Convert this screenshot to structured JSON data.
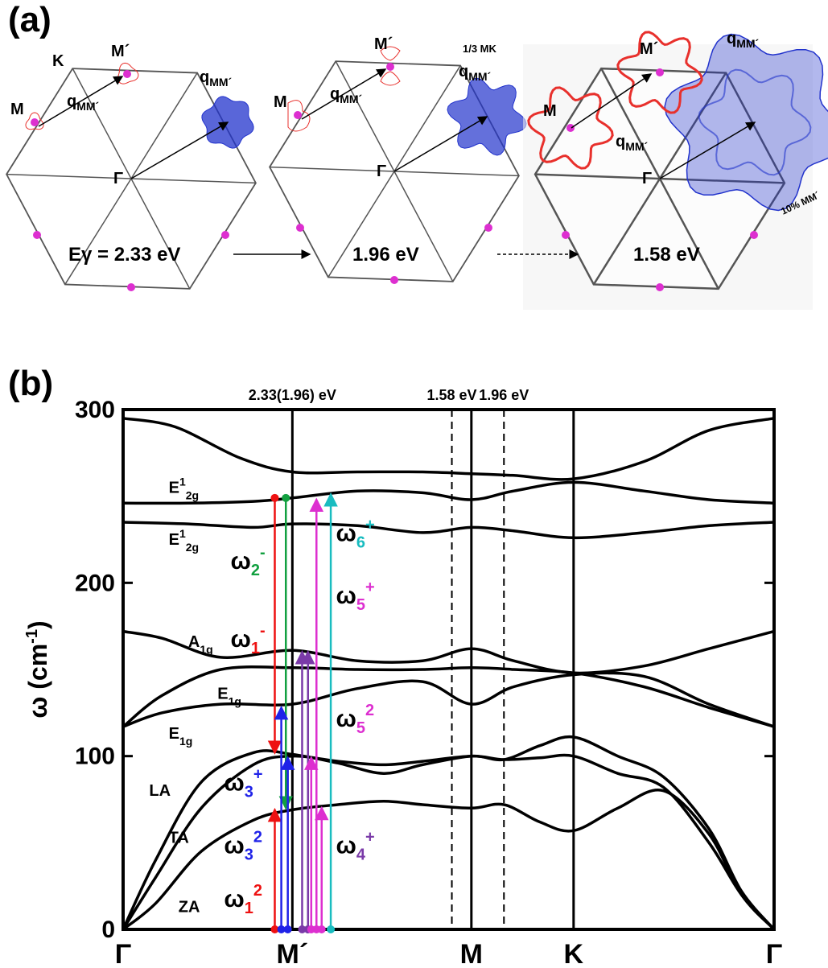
{
  "panels": {
    "a": "(a)",
    "b": "(b)"
  },
  "panel_a": {
    "energies": [
      "Eγ = 2.33 eV",
      "1.96 eV",
      "1.58 eV"
    ],
    "zones": [
      {
        "labels": {
          "M": "M",
          "Mp": "M´",
          "K": "K",
          "Gamma": "Γ",
          "q1": "q",
          "q1sub": "MM´",
          "q2": "q",
          "q2sub": "MM´"
        }
      },
      {
        "labels": {
          "M": "M",
          "Mp": "M´",
          "Gamma": "Γ",
          "q1": "q",
          "q1sub": "MM´",
          "q2": "q",
          "q2sub": "MM´",
          "frac": "1/3 MK"
        }
      },
      {
        "labels": {
          "M": "M",
          "Mp": "M´",
          "Gamma": "Γ",
          "q1": "q",
          "q1sub": "MM´",
          "q2": "q",
          "q2sub": "MM´",
          "pct": "10% MM´"
        }
      }
    ],
    "colors": {
      "contour": "#e8302c",
      "point": "#dd2fd0",
      "blue": "#2233cc",
      "zone": "#555555"
    }
  },
  "chart_data": {
    "type": "line",
    "ylabel": "ω (cm-1)",
    "ylim": [
      0,
      300
    ],
    "yticks": [
      0,
      100,
      200,
      300
    ],
    "xticks": [
      {
        "label": "Γ",
        "pos": 0.0
      },
      {
        "label": "M´",
        "pos": 0.26
      },
      {
        "label": "M",
        "pos": 0.535
      },
      {
        "label": "K",
        "pos": 0.692
      },
      {
        "label": "Γ",
        "pos": 1.0
      }
    ],
    "xlim": [
      0,
      1
    ],
    "vlines_dashed": [
      {
        "label": "1.58 eV",
        "pos": 0.505
      },
      {
        "label": "1.96 eV",
        "pos": 0.585
      }
    ],
    "top_label": "2.33(1.96) eV",
    "branches": [
      {
        "name": "ZA",
        "x": [
          0,
          0.05,
          0.12,
          0.2,
          0.26,
          0.33,
          0.4,
          0.46,
          0.535,
          0.585,
          0.64,
          0.692,
          0.76,
          0.83,
          0.9,
          0.95,
          1.0
        ],
        "y": [
          0,
          15,
          45,
          63,
          69,
          72,
          74,
          72,
          70,
          72,
          62,
          57,
          70,
          80,
          55,
          20,
          0
        ]
      },
      {
        "name": "TA",
        "x": [
          0,
          0.05,
          0.12,
          0.2,
          0.26,
          0.33,
          0.4,
          0.46,
          0.535,
          0.585,
          0.64,
          0.692,
          0.76,
          0.83,
          0.9,
          0.95,
          1.0
        ],
        "y": [
          0,
          30,
          70,
          95,
          100,
          97,
          95,
          97,
          100,
          98,
          99,
          100,
          90,
          82,
          50,
          20,
          0
        ]
      },
      {
        "name": "LA",
        "x": [
          0,
          0.05,
          0.12,
          0.2,
          0.26,
          0.33,
          0.4,
          0.46,
          0.535,
          0.585,
          0.64,
          0.692,
          0.76,
          0.83,
          0.9,
          0.95,
          1.0
        ],
        "y": [
          0,
          40,
          85,
          102,
          101,
          96,
          90,
          95,
          100,
          98,
          106,
          111,
          100,
          88,
          58,
          22,
          0
        ]
      },
      {
        "name": "E1g-a",
        "x": [
          0,
          0.06,
          0.15,
          0.26,
          0.36,
          0.46,
          0.535,
          0.6,
          0.692,
          0.8,
          0.9,
          1.0
        ],
        "y": [
          117,
          125,
          130,
          130,
          139,
          143,
          130,
          140,
          147,
          146,
          130,
          117
        ]
      },
      {
        "name": "E1g-b",
        "x": [
          0,
          0.06,
          0.15,
          0.26,
          0.36,
          0.46,
          0.535,
          0.6,
          0.692,
          0.8,
          0.9,
          1.0
        ],
        "y": [
          117,
          135,
          150,
          151,
          150,
          150,
          151,
          150,
          148,
          140,
          128,
          117
        ]
      },
      {
        "name": "A1g",
        "x": [
          0,
          0.06,
          0.15,
          0.26,
          0.36,
          0.46,
          0.535,
          0.6,
          0.692,
          0.8,
          0.9,
          1.0
        ],
        "y": [
          172,
          168,
          157,
          161,
          155,
          155,
          162,
          155,
          148,
          152,
          162,
          172
        ]
      },
      {
        "name": "E12g-a",
        "x": [
          0,
          0.1,
          0.2,
          0.26,
          0.36,
          0.46,
          0.535,
          0.6,
          0.692,
          0.8,
          0.9,
          1.0
        ],
        "y": [
          235,
          234,
          232,
          234,
          233,
          229,
          232,
          230,
          226,
          229,
          233,
          235
        ]
      },
      {
        "name": "E12g-b",
        "x": [
          0,
          0.1,
          0.2,
          0.26,
          0.36,
          0.46,
          0.535,
          0.6,
          0.692,
          0.8,
          0.9,
          1.0
        ],
        "y": [
          246,
          246,
          247,
          249,
          253,
          252,
          248,
          253,
          258,
          253,
          248,
          246
        ]
      },
      {
        "name": "E12g-c",
        "x": [
          0,
          0.08,
          0.18,
          0.26,
          0.36,
          0.46,
          0.535,
          0.6,
          0.692,
          0.8,
          0.9,
          1.0
        ],
        "y": [
          295,
          290,
          272,
          264,
          264,
          264,
          263,
          262,
          260,
          270,
          288,
          295
        ]
      }
    ],
    "branch_labels": [
      {
        "text": "E",
        "sup": "1",
        "sub": "2g",
        "x": 0.07,
        "y": 252
      },
      {
        "text": "E",
        "sup": "1",
        "sub": "2g",
        "x": 0.07,
        "y": 222
      },
      {
        "text": "A",
        "sup": "",
        "sub": "1g",
        "x": 0.1,
        "y": 163
      },
      {
        "text": "E",
        "sup": "",
        "sub": "1g",
        "x": 0.145,
        "y": 133
      },
      {
        "text": "E",
        "sup": "",
        "sub": "1g",
        "x": 0.07,
        "y": 110
      },
      {
        "text": "LA",
        "sup": "",
        "sub": "",
        "x": 0.04,
        "y": 77
      },
      {
        "text": "TA",
        "sup": "",
        "sub": "",
        "x": 0.07,
        "y": 50
      },
      {
        "text": "ZA",
        "sup": "",
        "sub": "",
        "x": 0.085,
        "y": 10
      }
    ],
    "arrows": [
      {
        "x": 0.233,
        "from": 249,
        "to": 102,
        "color": "#ee1111",
        "dir": "down"
      },
      {
        "x": 0.233,
        "from": 0,
        "to": 69,
        "color": "#ee1111",
        "dir": "up"
      },
      {
        "x": 0.25,
        "from": 249,
        "to": 70,
        "color": "#12a040",
        "dir": "down"
      },
      {
        "x": 0.243,
        "from": 0,
        "to": 128,
        "color": "#1f22e8",
        "dir": "up"
      },
      {
        "x": 0.253,
        "from": 0,
        "to": 99,
        "color": "#1f22e8",
        "dir": "up"
      },
      {
        "x": 0.275,
        "from": 0,
        "to": 160,
        "color": "#7a3aa8",
        "dir": "up"
      },
      {
        "x": 0.284,
        "from": 0,
        "to": 160,
        "color": "#7a3aa8",
        "dir": "up"
      },
      {
        "x": 0.297,
        "from": 0,
        "to": 248,
        "color": "#dd2fd0",
        "dir": "up"
      },
      {
        "x": 0.305,
        "from": 0,
        "to": 70,
        "color": "#dd2fd0",
        "dir": "up"
      },
      {
        "x": 0.289,
        "from": 0,
        "to": 99,
        "color": "#dd2fd0",
        "dir": "up"
      },
      {
        "x": 0.319,
        "from": 0,
        "to": 251,
        "color": "#19bcc0",
        "dir": "up"
      }
    ],
    "mode_labels": [
      {
        "text": "ω",
        "sub": "2",
        "sup": "-",
        "color": "#12a040",
        "x": 0.165,
        "y": 208
      },
      {
        "text": "ω",
        "sub": "1",
        "sup": "-",
        "color": "#ee1111",
        "x": 0.165,
        "y": 163
      },
      {
        "text": "ω",
        "sub": "6",
        "sup": "+",
        "color": "#19bcc0",
        "x": 0.327,
        "y": 224
      },
      {
        "text": "ω",
        "sub": "5",
        "sup": "+",
        "color": "#dd2fd0",
        "x": 0.327,
        "y": 188
      },
      {
        "text": "ω",
        "sub": "5",
        "sup": "2",
        "color": "#dd2fd0",
        "x": 0.327,
        "y": 117
      },
      {
        "text": "ω",
        "sub": "3",
        "sup": "+",
        "color": "#1f22e8",
        "x": 0.155,
        "y": 80
      },
      {
        "text": "ω",
        "sub": "3",
        "sup": "2",
        "color": "#1f22e8",
        "x": 0.155,
        "y": 44
      },
      {
        "text": "ω",
        "sub": "4",
        "sup": "+",
        "color": "#7a3aa8",
        "x": 0.327,
        "y": 44
      },
      {
        "text": "ω",
        "sub": "1",
        "sup": "2",
        "color": "#ee1111",
        "x": 0.155,
        "y": 13
      }
    ]
  }
}
